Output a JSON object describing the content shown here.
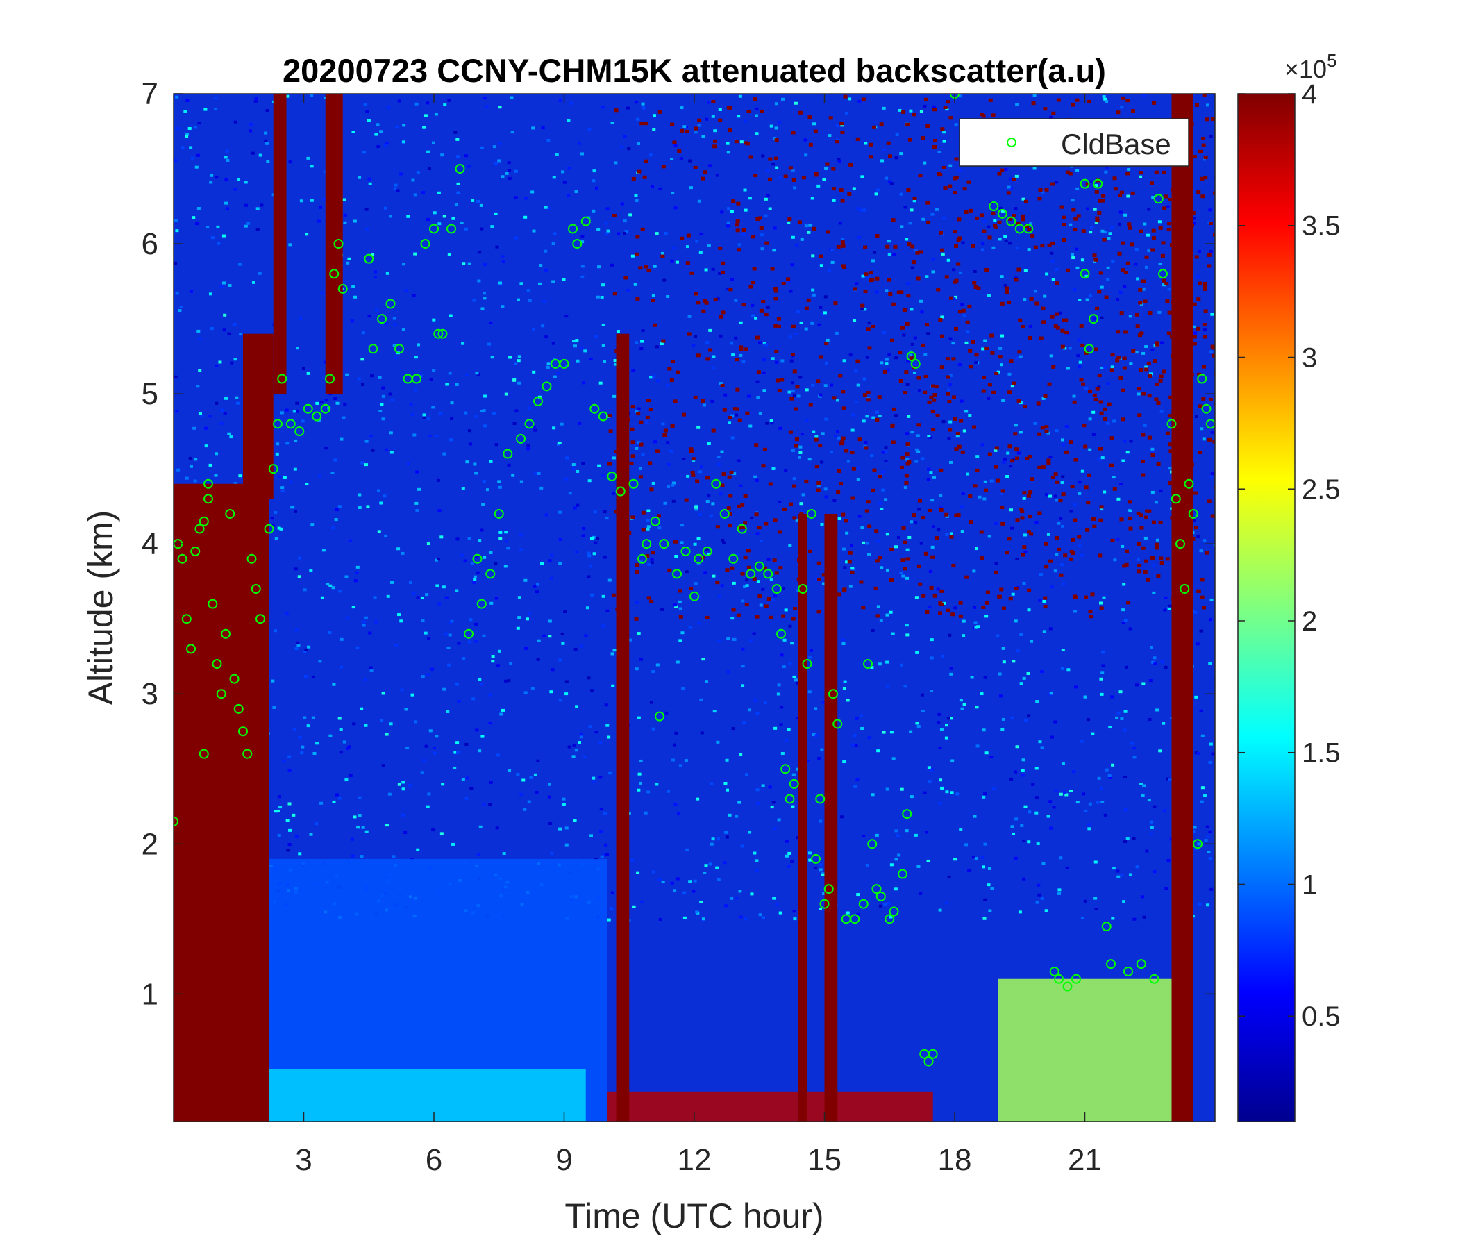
{
  "chart_data": {
    "type": "heatmap",
    "title": "20200723 CCNY-CHM15K attenuated backscatter(a.u)",
    "xlabel": "Time (UTC hour)",
    "ylabel": "Altitude (km)",
    "xlim": [
      0,
      24
    ],
    "ylim": [
      0.15,
      7
    ],
    "xticks": [
      3,
      6,
      9,
      12,
      15,
      18,
      21
    ],
    "yticks": [
      1,
      2,
      3,
      4,
      5,
      6,
      7
    ],
    "colorbar": {
      "clim": [
        0.1,
        4
      ],
      "ticks": [
        0.5,
        1,
        1.5,
        2,
        2.5,
        3,
        3.5,
        4
      ],
      "tick_labels": [
        "0.5",
        "1",
        "1.5",
        "2",
        "2.5",
        "3",
        "3.5",
        "4"
      ],
      "multiplier": "×10",
      "exponent": "5",
      "colormap": "jet"
    },
    "legend": {
      "placement": "top-right",
      "entries": [
        {
          "label": "CldBase",
          "marker": "circle",
          "color": "#00ff00"
        }
      ]
    },
    "colors": {
      "saturated": "#800000",
      "background_low": "#0a2fd6",
      "marker": "#00ff00"
    },
    "saturated_regions": [
      {
        "t0": 0.0,
        "t1": 2.2,
        "z0": 0.15,
        "z1": 4.4
      },
      {
        "t0": 1.6,
        "t1": 2.3,
        "z0": 4.3,
        "z1": 5.4
      },
      {
        "t0": 2.3,
        "t1": 2.6,
        "z0": 5.0,
        "z1": 7.0
      },
      {
        "t0": 3.5,
        "t1": 3.9,
        "z0": 5.0,
        "z1": 7.0
      },
      {
        "t0": 10.2,
        "t1": 10.5,
        "z0": 0.15,
        "z1": 5.4
      },
      {
        "t0": 14.4,
        "t1": 14.6,
        "z0": 0.15,
        "z1": 4.2
      },
      {
        "t0": 15.0,
        "t1": 15.3,
        "z0": 0.15,
        "z1": 4.2
      },
      {
        "t0": 23.0,
        "t1": 23.5,
        "z0": 0.15,
        "z1": 7.0
      }
    ],
    "saturated_upper_field": {
      "t0": 10.0,
      "t1": 24.0,
      "z0": 3.5,
      "z1": 7.0,
      "density": 0.62
    },
    "boundary_layer": [
      {
        "t0": 1.0,
        "t1": 10.0,
        "z0": 0.15,
        "z1": 1.9,
        "value": 0.9
      },
      {
        "t0": 1.8,
        "t1": 9.5,
        "z0": 0.15,
        "z1": 0.5,
        "value": 1.4
      },
      {
        "t0": 19.0,
        "t1": 23.0,
        "z0": 0.15,
        "z1": 1.1,
        "value": 2.2
      },
      {
        "t0": 10.0,
        "t1": 17.5,
        "z0": 0.15,
        "z1": 0.35,
        "value": 3.8
      }
    ],
    "cloud_base_points": [
      {
        "t": 0.0,
        "z": 2.15
      },
      {
        "t": 0.1,
        "z": 4.0
      },
      {
        "t": 0.2,
        "z": 3.9
      },
      {
        "t": 0.3,
        "z": 3.5
      },
      {
        "t": 0.4,
        "z": 3.3
      },
      {
        "t": 0.5,
        "z": 3.95
      },
      {
        "t": 0.6,
        "z": 4.1
      },
      {
        "t": 0.7,
        "z": 4.15
      },
      {
        "t": 0.7,
        "z": 2.6
      },
      {
        "t": 0.8,
        "z": 4.3
      },
      {
        "t": 0.8,
        "z": 4.4
      },
      {
        "t": 0.9,
        "z": 3.6
      },
      {
        "t": 1.0,
        "z": 3.2
      },
      {
        "t": 1.1,
        "z": 3.0
      },
      {
        "t": 1.2,
        "z": 3.4
      },
      {
        "t": 1.3,
        "z": 4.2
      },
      {
        "t": 1.4,
        "z": 3.1
      },
      {
        "t": 1.5,
        "z": 2.9
      },
      {
        "t": 1.6,
        "z": 2.75
      },
      {
        "t": 1.7,
        "z": 2.6
      },
      {
        "t": 1.8,
        "z": 3.9
      },
      {
        "t": 1.9,
        "z": 3.7
      },
      {
        "t": 2.0,
        "z": 3.5
      },
      {
        "t": 2.2,
        "z": 4.1
      },
      {
        "t": 2.3,
        "z": 4.5
      },
      {
        "t": 2.4,
        "z": 4.8
      },
      {
        "t": 2.5,
        "z": 5.1
      },
      {
        "t": 2.7,
        "z": 4.8
      },
      {
        "t": 2.9,
        "z": 4.75
      },
      {
        "t": 3.1,
        "z": 4.9
      },
      {
        "t": 3.3,
        "z": 4.85
      },
      {
        "t": 3.5,
        "z": 4.9
      },
      {
        "t": 3.6,
        "z": 5.1
      },
      {
        "t": 3.7,
        "z": 5.8
      },
      {
        "t": 3.8,
        "z": 6.0
      },
      {
        "t": 3.9,
        "z": 5.7
      },
      {
        "t": 4.5,
        "z": 5.9
      },
      {
        "t": 4.6,
        "z": 5.3
      },
      {
        "t": 4.8,
        "z": 5.5
      },
      {
        "t": 5.0,
        "z": 5.6
      },
      {
        "t": 5.2,
        "z": 5.3
      },
      {
        "t": 5.4,
        "z": 5.1
      },
      {
        "t": 5.6,
        "z": 5.1
      },
      {
        "t": 5.8,
        "z": 6.0
      },
      {
        "t": 6.0,
        "z": 6.1
      },
      {
        "t": 6.1,
        "z": 5.4
      },
      {
        "t": 6.2,
        "z": 5.4
      },
      {
        "t": 6.4,
        "z": 6.1
      },
      {
        "t": 6.6,
        "z": 6.5
      },
      {
        "t": 6.8,
        "z": 3.4
      },
      {
        "t": 7.0,
        "z": 3.9
      },
      {
        "t": 7.1,
        "z": 3.6
      },
      {
        "t": 7.3,
        "z": 3.8
      },
      {
        "t": 7.5,
        "z": 4.2
      },
      {
        "t": 7.7,
        "z": 4.6
      },
      {
        "t": 8.0,
        "z": 4.7
      },
      {
        "t": 8.2,
        "z": 4.8
      },
      {
        "t": 8.4,
        "z": 4.95
      },
      {
        "t": 8.6,
        "z": 5.05
      },
      {
        "t": 8.8,
        "z": 5.2
      },
      {
        "t": 9.0,
        "z": 5.2
      },
      {
        "t": 9.2,
        "z": 6.1
      },
      {
        "t": 9.3,
        "z": 6.0
      },
      {
        "t": 9.5,
        "z": 6.15
      },
      {
        "t": 9.7,
        "z": 4.9
      },
      {
        "t": 9.9,
        "z": 4.85
      },
      {
        "t": 10.1,
        "z": 4.45
      },
      {
        "t": 10.3,
        "z": 4.35
      },
      {
        "t": 10.6,
        "z": 4.4
      },
      {
        "t": 10.8,
        "z": 3.9
      },
      {
        "t": 10.9,
        "z": 4.0
      },
      {
        "t": 11.1,
        "z": 4.15
      },
      {
        "t": 11.2,
        "z": 2.85
      },
      {
        "t": 11.3,
        "z": 4.0
      },
      {
        "t": 11.6,
        "z": 3.8
      },
      {
        "t": 11.8,
        "z": 3.95
      },
      {
        "t": 12.0,
        "z": 3.65
      },
      {
        "t": 12.1,
        "z": 3.9
      },
      {
        "t": 12.3,
        "z": 3.95
      },
      {
        "t": 12.5,
        "z": 4.4
      },
      {
        "t": 12.7,
        "z": 4.2
      },
      {
        "t": 12.9,
        "z": 3.9
      },
      {
        "t": 13.1,
        "z": 4.1
      },
      {
        "t": 13.3,
        "z": 3.8
      },
      {
        "t": 13.5,
        "z": 3.85
      },
      {
        "t": 13.7,
        "z": 3.8
      },
      {
        "t": 13.9,
        "z": 3.7
      },
      {
        "t": 14.0,
        "z": 3.4
      },
      {
        "t": 14.1,
        "z": 2.5
      },
      {
        "t": 14.2,
        "z": 2.3
      },
      {
        "t": 14.3,
        "z": 2.4
      },
      {
        "t": 14.5,
        "z": 3.7
      },
      {
        "t": 14.6,
        "z": 3.2
      },
      {
        "t": 14.7,
        "z": 4.2
      },
      {
        "t": 14.8,
        "z": 1.9
      },
      {
        "t": 14.9,
        "z": 2.3
      },
      {
        "t": 15.0,
        "z": 1.6
      },
      {
        "t": 15.1,
        "z": 1.7
      },
      {
        "t": 15.2,
        "z": 3.0
      },
      {
        "t": 15.3,
        "z": 2.8
      },
      {
        "t": 15.5,
        "z": 1.5
      },
      {
        "t": 15.7,
        "z": 1.5
      },
      {
        "t": 15.9,
        "z": 1.6
      },
      {
        "t": 16.0,
        "z": 3.2
      },
      {
        "t": 16.1,
        "z": 2.0
      },
      {
        "t": 16.2,
        "z": 1.7
      },
      {
        "t": 16.3,
        "z": 1.65
      },
      {
        "t": 16.5,
        "z": 1.5
      },
      {
        "t": 16.6,
        "z": 1.55
      },
      {
        "t": 16.8,
        "z": 1.8
      },
      {
        "t": 16.9,
        "z": 2.2
      },
      {
        "t": 17.0,
        "z": 5.25
      },
      {
        "t": 17.1,
        "z": 5.2
      },
      {
        "t": 17.3,
        "z": 0.6
      },
      {
        "t": 17.4,
        "z": 0.55
      },
      {
        "t": 17.5,
        "z": 0.6
      },
      {
        "t": 18.0,
        "z": 7.0
      },
      {
        "t": 18.9,
        "z": 6.25
      },
      {
        "t": 19.1,
        "z": 6.2
      },
      {
        "t": 19.3,
        "z": 6.15
      },
      {
        "t": 19.5,
        "z": 6.1
      },
      {
        "t": 19.7,
        "z": 6.1
      },
      {
        "t": 19.8,
        "z": 6.55
      },
      {
        "t": 20.3,
        "z": 1.15
      },
      {
        "t": 20.4,
        "z": 1.1
      },
      {
        "t": 20.6,
        "z": 1.05
      },
      {
        "t": 20.8,
        "z": 1.1
      },
      {
        "t": 21.0,
        "z": 6.4
      },
      {
        "t": 21.0,
        "z": 5.8
      },
      {
        "t": 21.1,
        "z": 5.3
      },
      {
        "t": 21.2,
        "z": 5.5
      },
      {
        "t": 21.3,
        "z": 6.4
      },
      {
        "t": 21.5,
        "z": 1.45
      },
      {
        "t": 21.6,
        "z": 1.2
      },
      {
        "t": 22.0,
        "z": 1.15
      },
      {
        "t": 22.3,
        "z": 1.2
      },
      {
        "t": 22.6,
        "z": 1.1
      },
      {
        "t": 22.7,
        "z": 6.3
      },
      {
        "t": 22.8,
        "z": 5.8
      },
      {
        "t": 23.0,
        "z": 4.8
      },
      {
        "t": 23.1,
        "z": 4.3
      },
      {
        "t": 23.2,
        "z": 4.0
      },
      {
        "t": 23.3,
        "z": 3.7
      },
      {
        "t": 23.4,
        "z": 4.4
      },
      {
        "t": 23.5,
        "z": 4.2
      },
      {
        "t": 23.6,
        "z": 2.0
      },
      {
        "t": 23.7,
        "z": 5.1
      },
      {
        "t": 23.8,
        "z": 4.9
      },
      {
        "t": 23.9,
        "z": 4.8
      }
    ]
  }
}
